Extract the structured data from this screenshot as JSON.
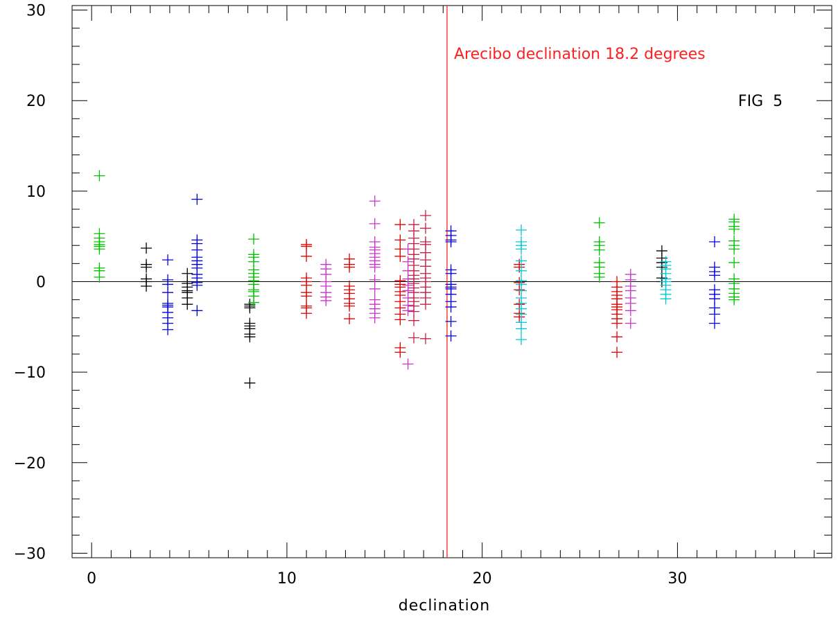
{
  "chart_data": {
    "type": "scatter",
    "title": "",
    "xlabel": "declination",
    "ylabel": "",
    "xlim": [
      -1,
      37.9
    ],
    "ylim": [
      -30.5,
      30.5
    ],
    "x_ticks": [
      0,
      10,
      20,
      30
    ],
    "y_ticks": [
      -30,
      -20,
      -10,
      0,
      10,
      20,
      30
    ],
    "x_tick_labels": [
      "0",
      "10",
      "20",
      "30"
    ],
    "y_tick_labels": [
      "−30",
      "−20",
      "−10",
      "0",
      "10",
      "20",
      "30"
    ],
    "x_minor_step": 1,
    "y_minor_step": 2,
    "zero_line": 0,
    "marker": "plus",
    "grid": false,
    "annotations": [
      {
        "text": "Arecibo declination 18.2 degrees",
        "x": 18.2,
        "y": 25.2,
        "color": "#ff2020"
      },
      {
        "text": "FIG  5",
        "x": 35.1,
        "y": 20,
        "color": "#000000"
      }
    ],
    "vertical_lines": [
      {
        "x": 18.2,
        "color": "#ff2020"
      }
    ],
    "series": [
      {
        "color": "#00c000",
        "x": 0.4,
        "y": [
          11.7,
          5.3,
          4.8,
          4.4,
          4.1,
          3.9,
          3.6,
          1.5,
          1.2,
          0.5
        ]
      },
      {
        "color": "#000000",
        "x": 2.8,
        "y": [
          3.7,
          1.9,
          1.6,
          0.3,
          0.0,
          -0.5
        ]
      },
      {
        "color": "#0000e0",
        "x": 3.9,
        "y": [
          2.4,
          0.2,
          -0.3,
          -1.2,
          -2.4,
          -2.6,
          -2.8,
          -3.4,
          -4.0,
          -4.6,
          -5.3
        ]
      },
      {
        "color": "#000000",
        "x": 4.9,
        "y": [
          0.9,
          0.0,
          -0.2,
          -0.6,
          -1.0,
          -1.2,
          -1.8,
          -2.5
        ]
      },
      {
        "color": "#0000e0",
        "x": 5.4,
        "y": [
          9.1,
          4.6,
          4.2,
          3.5,
          2.7,
          2.3,
          1.9,
          1.5,
          0.8,
          0.4,
          -0.1,
          -0.4,
          -3.2
        ]
      },
      {
        "color": "#000000",
        "x": 8.1,
        "y": [
          -2.5,
          -2.7,
          -2.9,
          -4.6,
          -4.9,
          -5.2,
          -5.8,
          -6.1,
          -11.2
        ]
      },
      {
        "color": "#00c000",
        "x": 8.3,
        "y": [
          4.7,
          3.0,
          2.7,
          2.2,
          1.3,
          0.9,
          0.5,
          0.1,
          -0.3,
          -0.9,
          -1.1,
          -1.6,
          -2.3
        ]
      },
      {
        "color": "#e00000",
        "x": 11.0,
        "y": [
          4.1,
          3.9,
          2.8,
          0.4,
          0.0,
          -0.4,
          -1.2,
          -1.6,
          -2.7,
          -2.9,
          -3.5
        ]
      },
      {
        "color": "#cc33cc",
        "x": 12.0,
        "y": [
          1.9,
          1.4,
          0.8,
          0.0,
          -0.5,
          -1.2,
          -1.7,
          -2.1
        ]
      },
      {
        "color": "#e00000",
        "x": 13.2,
        "y": [
          2.5,
          1.9,
          1.6,
          -0.5,
          -0.9,
          -1.3,
          -1.9,
          -2.4,
          -2.7,
          -4.1
        ]
      },
      {
        "color": "#cc33cc",
        "x": 14.5,
        "y": [
          8.9,
          6.4,
          4.4,
          3.8,
          3.5,
          3.1,
          2.7,
          2.3,
          1.9,
          1.6,
          0.2,
          -0.8,
          -2.0,
          -2.5,
          -3.0,
          -3.5,
          -4.0
        ]
      },
      {
        "color": "#e00000",
        "x": 15.8,
        "y": [
          6.3,
          4.6,
          3.6,
          2.8,
          0.1,
          -0.3,
          -0.6,
          -1.1,
          -1.5,
          -2.2,
          -2.9,
          -3.6,
          -4.2,
          -7.3,
          -7.8
        ]
      },
      {
        "color": "#cc33cc",
        "x": 16.2,
        "y": [
          3.6,
          2.2,
          1.2,
          0.3,
          -0.4,
          -1.0,
          -1.8,
          -2.6,
          -3.2,
          -9.1
        ]
      },
      {
        "color": "#c0204a",
        "x": 16.5,
        "y": [
          6.3,
          5.6,
          4.8,
          4.2,
          3.6,
          3.0,
          2.5,
          1.8,
          1.2,
          0.7,
          0.3,
          -0.2,
          -0.7,
          -1.2,
          -1.8,
          -2.2,
          -2.7,
          -3.3,
          -4.3,
          -6.2
        ]
      },
      {
        "color": "#c0204a",
        "x": 17.1,
        "y": [
          7.3,
          5.9,
          4.4,
          4.1,
          3.2,
          2.4,
          1.7,
          0.9,
          0.4,
          0.0,
          -0.6,
          -1.2,
          -1.8,
          -2.5,
          -6.3
        ]
      },
      {
        "color": "#0000e0",
        "x": 18.4,
        "y": [
          5.6,
          5.1,
          4.6,
          4.4,
          1.3,
          0.9,
          -0.3,
          -0.6,
          -0.8,
          -1.4,
          -2.2,
          -2.8,
          -4.4,
          -6.0
        ]
      },
      {
        "color": "#e00000",
        "x": 21.9,
        "y": [
          1.9,
          1.6,
          -0.1,
          -0.9,
          -2.5,
          -3.5,
          -3.9
        ]
      },
      {
        "color": "#00c8d8",
        "x": 22.0,
        "y": [
          5.7,
          4.4,
          4.0,
          3.6,
          2.3,
          1.2,
          0.1,
          -0.3,
          -1.0,
          -1.8,
          -2.4,
          -3.0,
          -3.6,
          -4.5,
          -5.2,
          -6.4
        ]
      },
      {
        "color": "#00c000",
        "x": 26.0,
        "y": [
          6.5,
          4.4,
          4.0,
          3.5,
          2.1,
          1.6,
          0.9,
          0.5
        ]
      },
      {
        "color": "#e00000",
        "x": 26.9,
        "y": [
          0.0,
          -0.6,
          -1.1,
          -1.5,
          -1.9,
          -2.5,
          -2.8,
          -3.1,
          -3.6,
          -4.1,
          -4.6,
          -6.1,
          -7.8
        ]
      },
      {
        "color": "#cc33cc",
        "x": 27.6,
        "y": [
          0.8,
          0.2,
          -0.5,
          -1.0,
          -1.8,
          -2.4,
          -3.2,
          -4.6
        ]
      },
      {
        "color": "#000000",
        "x": 29.2,
        "y": [
          3.4,
          2.6,
          2.1,
          1.6,
          0.4,
          0.0
        ]
      },
      {
        "color": "#00c8d8",
        "x": 29.4,
        "y": [
          2.2,
          1.8,
          1.4,
          0.9,
          0.3,
          0.0,
          -0.4,
          -0.9,
          -1.4,
          -1.9
        ]
      },
      {
        "color": "#0000e0",
        "x": 31.9,
        "y": [
          4.4,
          1.6,
          1.1,
          0.7,
          -0.9,
          -1.4,
          -1.9,
          -2.9,
          -3.6,
          -4.6
        ]
      },
      {
        "color": "#00c000",
        "x": 32.9,
        "y": [
          6.9,
          6.6,
          6.1,
          5.8,
          4.5,
          4.0,
          3.6,
          2.1,
          0.3,
          -0.2,
          -0.8,
          -1.3,
          -1.7,
          -2.0
        ]
      }
    ]
  }
}
